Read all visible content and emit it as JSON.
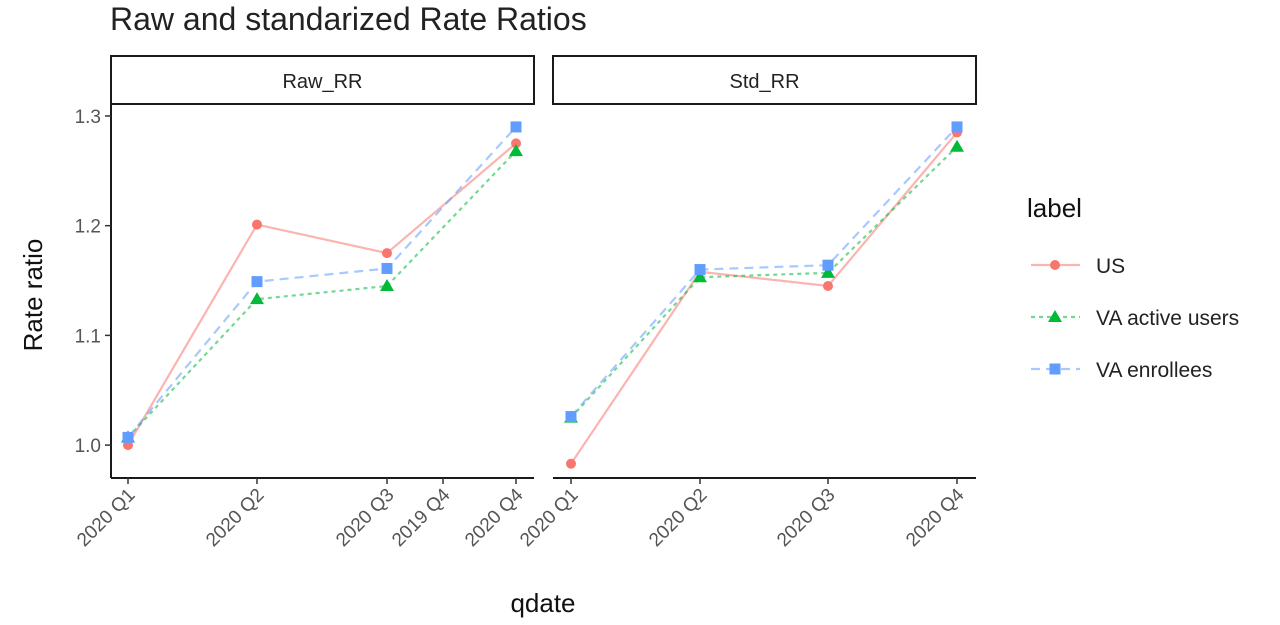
{
  "chart_data": {
    "type": "line",
    "title": "Raw and standarized Rate Ratios",
    "xlabel": "qdate",
    "ylabel": "Rate ratio",
    "ylim": [
      0.97,
      1.31
    ],
    "yticks": [
      "1.0",
      "1.1",
      "1.2",
      "1.3"
    ],
    "ytick_values": [
      1.0,
      1.1,
      1.2,
      1.3
    ],
    "grid": false,
    "legend_position": "right",
    "legend_title": "label",
    "colors": {
      "US": "#F8766D",
      "VA active users": "#00BA38",
      "VA enrollees": "#619CFF"
    },
    "panels": [
      {
        "strip": "Raw_RR",
        "x_ticks": [
          "2020 Q1",
          "2020 Q2",
          "2020 Q3",
          "2019 Q4",
          "2020 Q4"
        ],
        "series": [
          {
            "name": "US",
            "marker": "circle",
            "linestyle": "solid",
            "x": [
              "2020 Q1",
              "2020 Q2",
              "2020 Q3",
              "2020 Q4"
            ],
            "values": [
              1.0,
              1.201,
              1.175,
              1.275
            ]
          },
          {
            "name": "VA active users",
            "marker": "triangle",
            "linestyle": "dotted",
            "x": [
              "2020 Q1",
              "2020 Q2",
              "2020 Q3",
              "2020 Q4"
            ],
            "values": [
              1.007,
              1.133,
              1.145,
              1.268
            ]
          },
          {
            "name": "VA enrollees",
            "marker": "square",
            "linestyle": "dashed",
            "x": [
              "2020 Q1",
              "2020 Q2",
              "2020 Q3",
              "2020 Q4"
            ],
            "values": [
              1.007,
              1.149,
              1.161,
              1.29
            ]
          }
        ]
      },
      {
        "strip": "Std_RR",
        "x_ticks": [
          "2020 Q1",
          "2020 Q2",
          "2020 Q3",
          "2020 Q4"
        ],
        "series": [
          {
            "name": "US",
            "marker": "circle",
            "linestyle": "solid",
            "x": [
              "2020 Q1",
              "2020 Q2",
              "2020 Q3",
              "2020 Q4"
            ],
            "values": [
              0.983,
              1.158,
              1.145,
              1.285
            ]
          },
          {
            "name": "VA active users",
            "marker": "triangle",
            "linestyle": "dotted",
            "x": [
              "2020 Q1",
              "2020 Q2",
              "2020 Q3",
              "2020 Q4"
            ],
            "values": [
              1.025,
              1.153,
              1.157,
              1.272
            ]
          },
          {
            "name": "VA enrollees",
            "marker": "square",
            "linestyle": "dashed",
            "x": [
              "2020 Q1",
              "2020 Q2",
              "2020 Q3",
              "2020 Q4"
            ],
            "values": [
              1.026,
              1.16,
              1.164,
              1.29
            ]
          }
        ]
      }
    ]
  }
}
